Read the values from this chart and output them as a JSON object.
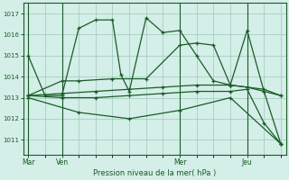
{
  "background_color": "#d4eee8",
  "grid_color": "#a0c8bc",
  "line_color": "#1a5c28",
  "title": "Pression niveau de la mer( hPa )",
  "ylim": [
    1010.3,
    1017.5
  ],
  "yticks": [
    1011,
    1012,
    1013,
    1014,
    1015,
    1016,
    1017
  ],
  "day_labels": [
    "Mar",
    "Ven",
    "Mer",
    "Jeu"
  ],
  "day_positions": [
    0,
    2,
    9,
    13
  ],
  "vline_positions": [
    0,
    2,
    9,
    13
  ],
  "total_points": 16,
  "series": [
    {
      "x": [
        0,
        1,
        2,
        3,
        4,
        5,
        5.5,
        6,
        7,
        8,
        9,
        10,
        11,
        12,
        13,
        14,
        15
      ],
      "y": [
        1015.0,
        1013.1,
        1013.1,
        1016.3,
        1016.7,
        1016.7,
        1014.1,
        1013.3,
        1016.8,
        1016.1,
        1016.2,
        1015.0,
        1013.8,
        1013.6,
        1016.2,
        1013.3,
        1010.8
      ]
    },
    {
      "x": [
        0,
        2,
        4,
        6,
        8,
        10,
        12,
        14,
        15
      ],
      "y": [
        1013.1,
        1013.2,
        1013.3,
        1013.4,
        1013.5,
        1013.6,
        1013.6,
        1013.4,
        1013.1
      ]
    },
    {
      "x": [
        0,
        2,
        3,
        5,
        7,
        9,
        10,
        11,
        12,
        13,
        15
      ],
      "y": [
        1013.1,
        1013.8,
        1013.8,
        1013.9,
        1013.9,
        1015.5,
        1015.6,
        1015.5,
        1013.6,
        1013.5,
        1013.1
      ]
    },
    {
      "x": [
        0,
        2,
        4,
        6,
        8,
        10,
        12,
        13,
        14,
        15
      ],
      "y": [
        1013.1,
        1013.0,
        1013.0,
        1013.1,
        1013.2,
        1013.3,
        1013.3,
        1013.4,
        1011.8,
        1010.8
      ]
    },
    {
      "x": [
        0,
        3,
        6,
        9,
        12,
        15
      ],
      "y": [
        1013.0,
        1012.3,
        1012.0,
        1012.4,
        1013.0,
        1010.8
      ]
    }
  ]
}
